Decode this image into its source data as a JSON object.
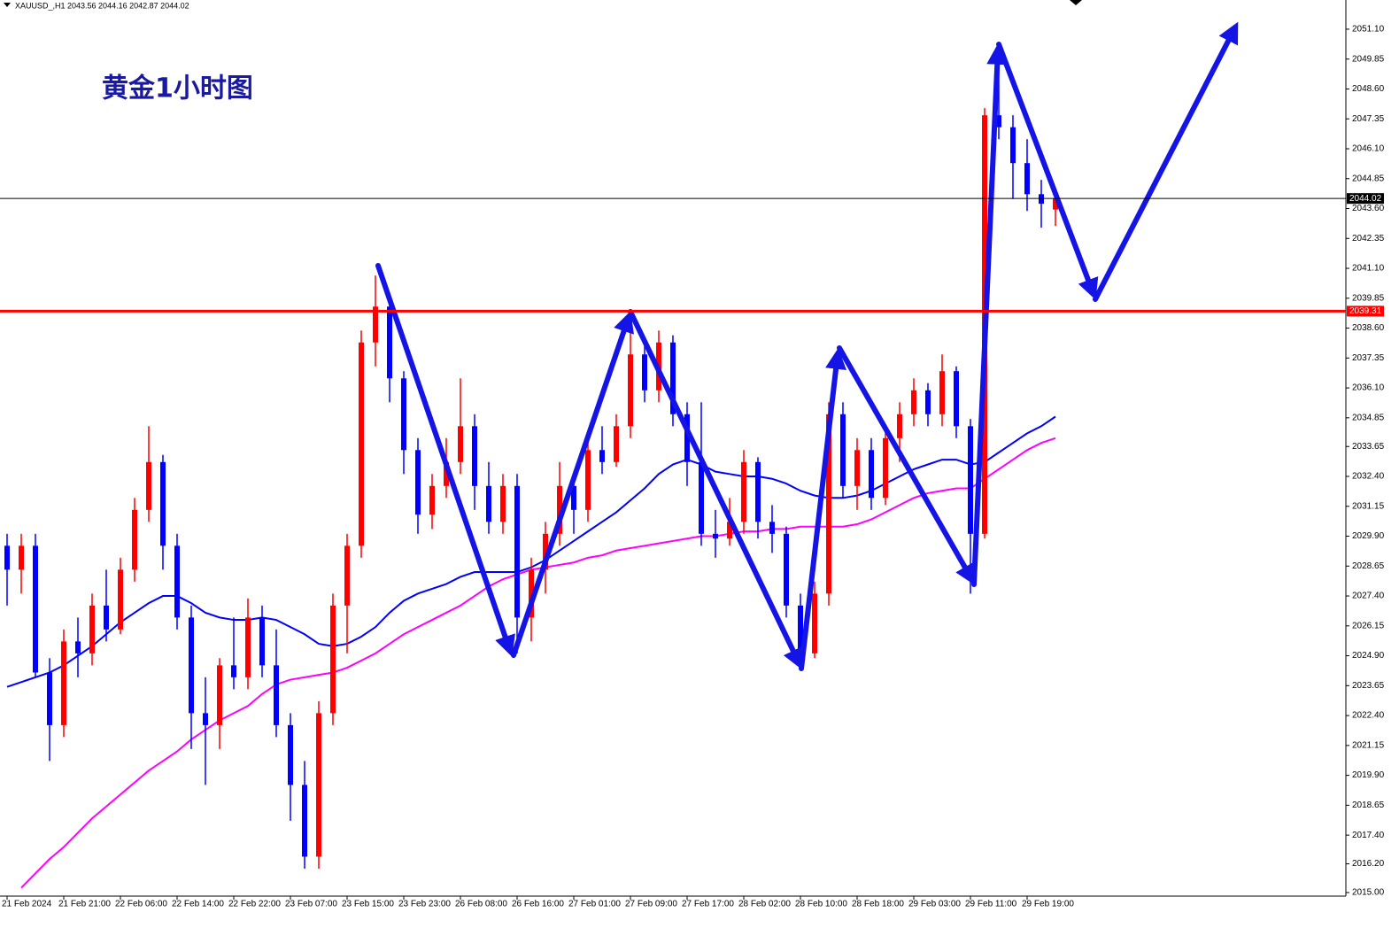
{
  "chart_data": {
    "type": "candlestick",
    "title": "黄金1小时图",
    "subtitle": "XAUUSD_,H1  2043.56 2044.16 2042.87 2044.02",
    "up_color": "#ff0000",
    "down_color": "#0000ff",
    "ylim": [
      2014.85,
      2052.32
    ],
    "yticks": [
      {
        "value": 2051.1,
        "label": "2051.10"
      },
      2049.85,
      {
        "value": 2048.6,
        "label": "2048.60"
      },
      2047.35,
      {
        "value": 2046.1,
        "label": "2046.10"
      },
      2044.85,
      {
        "value": 2043.6,
        "label": "2043.60"
      },
      2042.35,
      {
        "value": 2041.1,
        "label": "2041.10"
      },
      2039.85,
      {
        "value": 2038.6,
        "label": "2038.60"
      },
      2037.35,
      {
        "value": 2036.1,
        "label": "2036.10"
      },
      2034.85,
      2033.65,
      {
        "value": 2032.4,
        "label": "2032.40"
      },
      2031.15,
      {
        "value": 2029.9,
        "label": "2029.90"
      },
      2028.65,
      {
        "value": 2027.4,
        "label": "2027.40"
      },
      2026.15,
      {
        "value": 2024.9,
        "label": "2024.90"
      },
      2023.65,
      {
        "value": 2022.4,
        "label": "2022.40"
      },
      2021.15,
      {
        "value": 2019.9,
        "label": "2019.90"
      },
      2018.65,
      {
        "value": 2017.4,
        "label": "2017.40"
      },
      {
        "value": 2016.2,
        "label": "2016.20"
      },
      {
        "value": 2015,
        "label": "2015.00"
      }
    ],
    "hlines": [
      {
        "value": 2044.02,
        "color": "#000000"
      },
      {
        "value": 2039.31,
        "color": "#ff0000"
      }
    ],
    "categories": [
      "21 Feb 2024",
      null,
      null,
      null,
      "21 Feb 21:00",
      null,
      null,
      null,
      "22 Feb 06:00",
      null,
      null,
      null,
      "22 Feb 14:00",
      null,
      null,
      null,
      "22 Feb 22:00",
      null,
      null,
      null,
      "23 Feb 07:00",
      null,
      null,
      null,
      "23 Feb 15:00",
      null,
      null,
      null,
      "23 Feb 23:00",
      null,
      null,
      null,
      "26 Feb 08:00",
      null,
      null,
      null,
      "26 Feb 16:00",
      null,
      null,
      null,
      "27 Feb 01:00",
      null,
      null,
      null,
      "27 Feb 09:00",
      null,
      null,
      null,
      "27 Feb 17:00",
      null,
      null,
      null,
      "28 Feb 02:00",
      null,
      null,
      null,
      "28 Feb 10:00",
      null,
      null,
      null,
      "28 Feb 18:00",
      null,
      null,
      null,
      "29 Feb 03:00",
      null,
      null,
      null,
      "29 Feb 11:00",
      null,
      null,
      null,
      "29 Feb 19:00",
      null,
      null
    ],
    "candles": [
      [
        2029.5,
        2030,
        2027,
        2028.5
      ],
      [
        2028.5,
        2030,
        2027.5,
        2029.5
      ],
      [
        2029.5,
        2030,
        2024,
        2024.2
      ],
      [
        2024.2,
        2024.8,
        2020.5,
        2022
      ],
      [
        2022,
        2026,
        2021.5,
        2025.5
      ],
      [
        2025.5,
        2026.5,
        2024,
        2025
      ],
      [
        2025,
        2027.5,
        2024.5,
        2027
      ],
      [
        2027,
        2028.5,
        2025.5,
        2026
      ],
      [
        2026,
        2029,
        2025.8,
        2028.5
      ],
      [
        2028.5,
        2031.5,
        2028,
        2031
      ],
      [
        2031,
        2034.5,
        2030.5,
        2033
      ],
      [
        2033,
        2033.3,
        2028.5,
        2029.5
      ],
      [
        2029.5,
        2030,
        2026,
        2026.5
      ],
      [
        2026.5,
        2027,
        2021,
        2022.5
      ],
      [
        2022.5,
        2024,
        2019.5,
        2022
      ],
      [
        2022,
        2024.8,
        2021,
        2024.5
      ],
      [
        2024.5,
        2026.5,
        2023.5,
        2024
      ],
      [
        2024,
        2027.3,
        2023.5,
        2026.5
      ],
      [
        2026.5,
        2027,
        2024,
        2024.5
      ],
      [
        2024.5,
        2026,
        2021.5,
        2022
      ],
      [
        2022,
        2022.5,
        2018,
        2019.5
      ],
      [
        2019.5,
        2020.5,
        2016,
        2016.5
      ],
      [
        2016.5,
        2023,
        2016,
        2022.5
      ],
      [
        2022.5,
        2027.5,
        2022,
        2027
      ],
      [
        2027,
        2030,
        2025,
        2029.5
      ],
      [
        2029.5,
        2038.5,
        2029,
        2038
      ],
      [
        2038,
        2040.8,
        2037,
        2039.5
      ],
      [
        2039.5,
        2039.8,
        2035.5,
        2036.5
      ],
      [
        2036.5,
        2036.8,
        2032.5,
        2033.5
      ],
      [
        2033.5,
        2034,
        2030,
        2030.8
      ],
      [
        2030.8,
        2032.5,
        2030.2,
        2032
      ],
      [
        2032,
        2034,
        2031.5,
        2033
      ],
      [
        2033,
        2036.5,
        2032.5,
        2034.5
      ],
      [
        2034.5,
        2035,
        2031,
        2032
      ],
      [
        2032,
        2033,
        2030,
        2030.5
      ],
      [
        2030.5,
        2032.5,
        2030,
        2032
      ],
      [
        2032,
        2032.5,
        2025,
        2026.5
      ],
      [
        2026.5,
        2029,
        2025.5,
        2028.5
      ],
      [
        2028.5,
        2030.5,
        2027.5,
        2030
      ],
      [
        2030,
        2033,
        2029.5,
        2032
      ],
      [
        2032,
        2032.5,
        2030,
        2031
      ],
      [
        2031,
        2034,
        2030.5,
        2033.5
      ],
      [
        2033.5,
        2034.5,
        2032.5,
        2033
      ],
      [
        2033,
        2035,
        2032.8,
        2034.5
      ],
      [
        2034.5,
        2038.5,
        2034,
        2037.5
      ],
      [
        2037.5,
        2038,
        2035.5,
        2036
      ],
      [
        2036,
        2038.5,
        2035.5,
        2038
      ],
      [
        2038,
        2038.3,
        2034.5,
        2035
      ],
      [
        2035,
        2035.5,
        2032,
        2033
      ],
      [
        2033,
        2035.5,
        2029.5,
        2030
      ],
      [
        2030,
        2031,
        2029,
        2029.8
      ],
      [
        2029.8,
        2031.5,
        2029.5,
        2030.5
      ],
      [
        2030.5,
        2033.5,
        2030,
        2033
      ],
      [
        2033,
        2033.2,
        2029.8,
        2030.5
      ],
      [
        2030.5,
        2031.2,
        2029.2,
        2030
      ],
      [
        2030,
        2030.3,
        2026.5,
        2027
      ],
      [
        2027,
        2027.5,
        2024.5,
        2025
      ],
      [
        2025,
        2028,
        2024.8,
        2027.5
      ],
      [
        2027.5,
        2035.5,
        2027,
        2035
      ],
      [
        2035,
        2035.5,
        2031.5,
        2032
      ],
      [
        2032,
        2034,
        2031,
        2033.5
      ],
      [
        2033.5,
        2034,
        2031,
        2031.5
      ],
      [
        2031.5,
        2034.5,
        2031.2,
        2034
      ],
      [
        2034,
        2035.5,
        2033,
        2035
      ],
      [
        2035,
        2036.5,
        2034.5,
        2036
      ],
      [
        2036,
        2036.3,
        2034.5,
        2035
      ],
      [
        2035,
        2037.5,
        2034.5,
        2036.8
      ],
      [
        2036.8,
        2037,
        2034,
        2034.5
      ],
      [
        2034.5,
        2034.8,
        2027.5,
        2030
      ],
      [
        2030,
        2047.8,
        2029.8,
        2047.5
      ],
      [
        2047.5,
        2050.5,
        2046.5,
        2047
      ],
      [
        2047,
        2047.5,
        2044,
        2045.5
      ],
      [
        2045.5,
        2046.5,
        2043.5,
        2044.2
      ],
      [
        2044.2,
        2044.8,
        2042.8,
        2043.8
      ],
      [
        2043.56,
        2044.16,
        2042.87,
        2044.02
      ]
    ],
    "series": [
      {
        "color": "#0000ff",
        "values": [
          2023.6,
          2023.8,
          2024.0,
          2024.2,
          2024.5,
          2024.9,
          2025.3,
          2025.8,
          2026.3,
          2026.7,
          2027.1,
          2027.4,
          2027.4,
          2027.1,
          2026.7,
          2026.5,
          2026.4,
          2026.4,
          2026.5,
          2026.4,
          2026.1,
          2025.8,
          2025.4,
          2025.3,
          2025.4,
          2025.7,
          2026.1,
          2026.7,
          2027.2,
          2027.5,
          2027.7,
          2027.9,
          2028.2,
          2028.4,
          2028.4,
          2028.4,
          2028.4,
          2028.6,
          2028.9,
          2029.3,
          2029.7,
          2030.1,
          2030.5,
          2030.9,
          2031.4,
          2031.9,
          2032.5,
          2032.9,
          2033.1,
          2032.9,
          2032.6,
          2032.5,
          2032.4,
          2032.4,
          2032.3,
          2032.1,
          2031.8,
          2031.6,
          2031.5,
          2031.5,
          2031.6,
          2031.8,
          2032.1,
          2032.4,
          2032.7,
          2032.9,
          2033.1,
          2033.1,
          2032.9,
          2033.0,
          2033.4,
          2033.8,
          2034.2,
          2034.5,
          2034.9
        ]
      },
      {
        "color": "#ff00ff",
        "values": [
          null,
          2015.2,
          2015.8,
          2016.4,
          2016.9,
          2017.5,
          2018.1,
          2018.6,
          2019.1,
          2019.6,
          2020.1,
          2020.5,
          2020.9,
          2021.4,
          2021.8,
          2022.2,
          2022.5,
          2022.8,
          2023.3,
          2023.7,
          2023.9,
          2024.0,
          2024.1,
          2024.2,
          2024.4,
          2024.7,
          2025.0,
          2025.4,
          2025.8,
          2026.1,
          2026.4,
          2026.7,
          2027.0,
          2027.4,
          2027.8,
          2028.1,
          2028.3,
          2028.5,
          2028.6,
          2028.7,
          2028.8,
          2029.0,
          2029.1,
          2029.3,
          2029.4,
          2029.5,
          2029.6,
          2029.7,
          2029.8,
          2029.9,
          2029.9,
          2030.0,
          2030.1,
          2030.1,
          2030.2,
          2030.2,
          2030.3,
          2030.3,
          2030.3,
          2030.3,
          2030.4,
          2030.6,
          2030.9,
          2031.2,
          2031.5,
          2031.7,
          2031.8,
          2031.9,
          2031.9,
          2032.3,
          2032.7,
          2033.1,
          2033.5,
          2033.8,
          2034.0
        ]
      }
    ]
  }
}
